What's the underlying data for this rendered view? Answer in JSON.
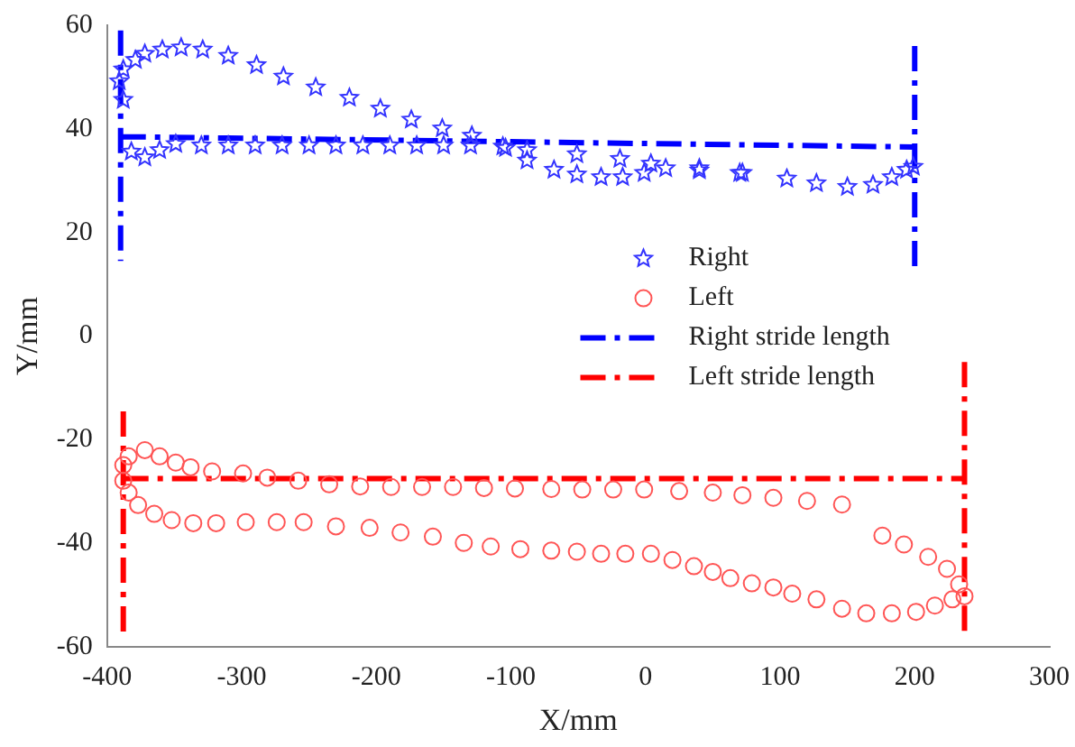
{
  "chart_data": {
    "type": "scatter",
    "xlabel": "X/mm",
    "ylabel": "Y/mm",
    "xlim": [
      -400,
      300
    ],
    "xticks": [
      -400,
      -300,
      -200,
      -100,
      0,
      100,
      200,
      300
    ],
    "ylim": [
      -60,
      60
    ],
    "yticks": [
      -60,
      -40,
      -20,
      0,
      20,
      40,
      60
    ],
    "grid": false,
    "legend": "right",
    "series": [
      {
        "name": "Right",
        "type": "scatter",
        "marker": "star",
        "color": "#3333ff",
        "x": [
          -391,
          -388,
          -379,
          -372,
          -359,
          -345,
          -329,
          -310,
          -289,
          -269,
          -245,
          -220,
          -197,
          -174,
          -151,
          -129,
          -104,
          -88,
          -68,
          -51,
          -33,
          -17,
          -1,
          15,
          40,
          70,
          -388,
          -382,
          -372,
          -361,
          -349,
          -330,
          -310,
          -290,
          -270,
          -250,
          -230,
          -210,
          -190,
          -170,
          -150,
          -130,
          -106,
          -88,
          -51,
          -19,
          4,
          40,
          72,
          105,
          127,
          150,
          169,
          183,
          194,
          199
        ],
        "values": [
          49.2,
          51.5,
          53.3,
          54.5,
          55.3,
          55.7,
          55.3,
          54.1,
          52.3,
          50.1,
          48,
          46,
          43.9,
          41.8,
          40.1,
          38.7,
          36.3,
          33.9,
          32.1,
          31.2,
          30.7,
          30.7,
          31.5,
          32.4,
          32,
          31.5,
          45.6,
          35.6,
          34.5,
          35.9,
          37.1,
          36.8,
          36.8,
          36.8,
          36.8,
          36.8,
          36.8,
          36.8,
          36.8,
          36.8,
          36.8,
          36.8,
          36.6,
          35.9,
          35.1,
          34.2,
          33.3,
          32.4,
          31.5,
          30.4,
          29.5,
          28.8,
          29.2,
          30.7,
          32.1,
          32.7
        ]
      },
      {
        "name": "Left",
        "type": "scatter",
        "marker": "circle",
        "color": "#ff5555",
        "x": [
          -388,
          -384,
          -372,
          -361,
          -349,
          -338,
          -322,
          -299,
          -281,
          -258,
          -235,
          -212,
          -189,
          -166,
          -143,
          -120,
          -97,
          -70,
          -47,
          -24,
          -1,
          25,
          50,
          72,
          95,
          120,
          146,
          176,
          192,
          210,
          224,
          233,
          237,
          -388,
          -384,
          -377,
          -365,
          -352,
          -336,
          -319,
          -297,
          -274,
          -254,
          -230,
          -205,
          -182,
          -158,
          -135,
          -115,
          -93,
          -70,
          -51,
          -33,
          -15,
          4,
          20,
          36,
          50,
          63,
          79,
          95,
          109,
          127,
          146,
          164,
          183,
          201,
          215,
          228
        ],
        "values": [
          -24.9,
          -23.2,
          -22,
          -23.2,
          -24.4,
          -25.3,
          -26.1,
          -26.5,
          -27.3,
          -27.9,
          -28.6,
          -29,
          -29.1,
          -29.1,
          -29.1,
          -29.3,
          -29.4,
          -29.5,
          -29.6,
          -29.6,
          -29.6,
          -29.9,
          -30.2,
          -30.7,
          -31.2,
          -31.8,
          -32.5,
          -38.5,
          -40.2,
          -42.6,
          -44.9,
          -47.9,
          -50.2,
          -27.9,
          -30.2,
          -32.6,
          -34.3,
          -35.5,
          -36.1,
          -36.1,
          -35.9,
          -35.9,
          -35.9,
          -36.7,
          -37,
          -37.9,
          -38.7,
          -39.9,
          -40.6,
          -41.1,
          -41.4,
          -41.6,
          -42,
          -42,
          -42,
          -43.2,
          -44.4,
          -45.5,
          -46.7,
          -47.7,
          -48.5,
          -49.7,
          -50.8,
          -52.6,
          -53.5,
          -53.5,
          -53.2,
          -52,
          -50.8
        ]
      },
      {
        "name": "Right stride length",
        "type": "line",
        "marker": "none",
        "line_style": "dashed",
        "color": "#0000ff",
        "x": [
          -390,
          -390,
          null,
          -390,
          200,
          null,
          200,
          200
        ],
        "values": [
          59,
          14.5,
          null,
          38.5,
          36.5,
          null,
          56,
          13.5
        ]
      },
      {
        "name": "Left stride length",
        "type": "line",
        "marker": "none",
        "line_style": "dashed",
        "color": "#ff0000",
        "x": [
          -388,
          -388,
          null,
          -388,
          237,
          null,
          237,
          237
        ],
        "values": [
          -14.5,
          -57,
          null,
          -27.5,
          -27.5,
          null,
          -5,
          -57
        ]
      }
    ]
  }
}
